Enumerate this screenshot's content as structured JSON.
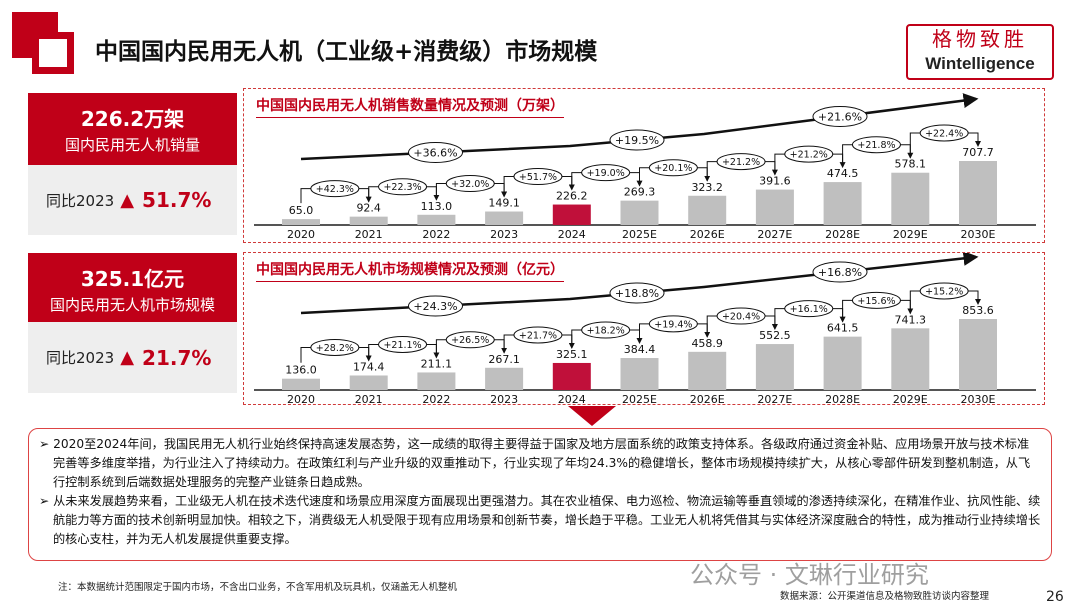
{
  "title": "中国国内民用无人机（工业级+消费级）市场规模",
  "brand": {
    "cn": "格物致胜",
    "en": "Wintelligence"
  },
  "colors": {
    "accent": "#c00018",
    "bar": "#bfbfbf",
    "highlight": "#c0103a"
  },
  "kpis": [
    {
      "value": "226.2万架",
      "label": "国内民用无人机销量",
      "yoy_label": "同比2023",
      "arrow": "▲",
      "yoy": "51.7%"
    },
    {
      "value": "325.1亿元",
      "label": "国内民用无人机市场规模",
      "yoy_label": "同比2023",
      "arrow": "▲",
      "yoy": "21.7%"
    }
  ],
  "chart_data": [
    {
      "type": "bar",
      "title": "中国国内民用无人机销售数量情况及预测（万架）",
      "categories": [
        "2020",
        "2021",
        "2022",
        "2023",
        "2024",
        "2025E",
        "2026E",
        "2027E",
        "2028E",
        "2029E",
        "2030E"
      ],
      "values": [
        65.0,
        92.4,
        113.0,
        149.1,
        226.2,
        269.3,
        323.2,
        391.6,
        474.5,
        578.1,
        707.7
      ],
      "highlight": "2024",
      "yoy": [
        "+42.3%",
        "+22.3%",
        "+32.0%",
        "+51.7%",
        "+19.0%",
        "+20.1%",
        "+21.2%",
        "+21.2%",
        "+21.8%",
        "+22.4%"
      ],
      "cagr": [
        "+36.6%",
        "+19.5%",
        "+21.6%"
      ]
    },
    {
      "type": "bar",
      "title": "中国国内民用无人机市场规模情况及预测（亿元）",
      "categories": [
        "2020",
        "2021",
        "2022",
        "2023",
        "2024",
        "2025E",
        "2026E",
        "2027E",
        "2028E",
        "2029E",
        "2030E"
      ],
      "values": [
        136.0,
        174.4,
        211.1,
        267.1,
        325.1,
        384.4,
        458.9,
        552.5,
        641.5,
        741.3,
        853.6
      ],
      "highlight": "2024",
      "yoy": [
        "+28.2%",
        "+21.1%",
        "+26.5%",
        "+21.7%",
        "+18.2%",
        "+19.4%",
        "+20.4%",
        "+16.1%",
        "+15.6%",
        "+15.2%"
      ],
      "cagr": [
        "+24.3%",
        "+18.8%",
        "+16.8%"
      ]
    }
  ],
  "summary": [
    "➢ 2020至2024年间，我国民用无人机行业始终保持高速发展态势，这一成绩的取得主要得益于国家及地方层面系统的政策支持体系。各级政府通过资金补贴、应用场景开放与技术标准完善等多维度举措，为行业注入了持续动力。在政策红利与产业升级的双重推动下，行业实现了年均24.3%的稳健增长，整体市场规模持续扩大，从核心零部件研发到整机制造，从飞行控制系统到后端数据处理服务的完整产业链条日趋成熟。",
    "➢ 从未来发展趋势来看，工业级无人机在技术迭代速度和场景应用深度方面展现出更强潜力。其在农业植保、电力巡检、物流运输等垂直领域的渗透持续深化，在精准作业、抗风性能、续航能力等方面的技术创新明显加快。相较之下，消费级无人机受限于现有应用场景和创新节奏，增长趋于平稳。工业无人机将凭借其与实体经济深度融合的特性，成为推动行业持续增长的核心支柱，并为无人机发展提供重要支撑。"
  ],
  "footer": {
    "note": "注：本数据统计范围限定于国内市场，不含出口业务，不含军用机及玩具机，仅涵盖无人机整机",
    "source": "数据来源：公开渠道信息及格物致胜访谈内容整理",
    "page": "26",
    "watermark": "公众号 · 文琳行业研究"
  }
}
